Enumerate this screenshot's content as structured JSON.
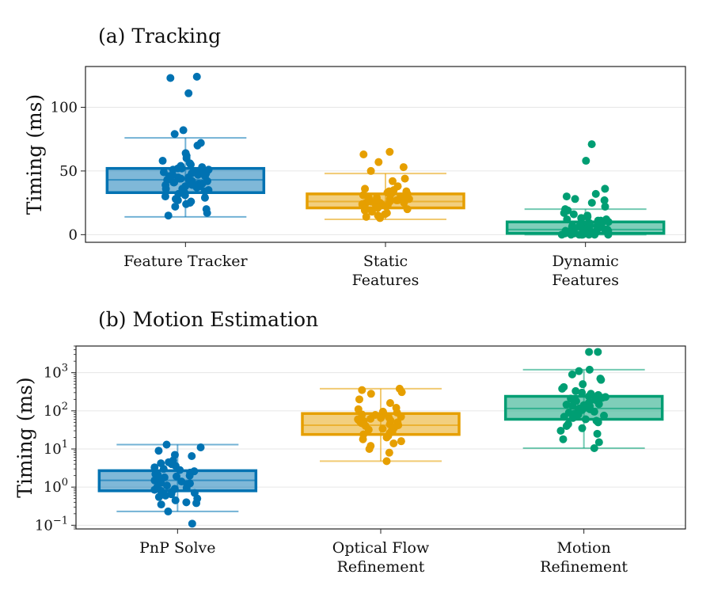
{
  "colors": {
    "blue": "#0072b2",
    "orange": "#e69f00",
    "green": "#009e73"
  },
  "chart_data": [
    {
      "type": "box",
      "title": "(a) Tracking",
      "ylabel": "Timing (ms)",
      "yscale": "linear",
      "ylim": [
        -6,
        132
      ],
      "yticks": [
        0,
        50,
        100
      ],
      "ytick_labels": [
        "0",
        "50",
        "100"
      ],
      "categories": [
        {
          "label": [
            "Feature Tracker"
          ],
          "color": "blue",
          "whisker_low": 14,
          "q1": 33,
          "median": 43,
          "q3": 52,
          "whisker_high": 76,
          "points": [
            123,
            124,
            111,
            82,
            79,
            72,
            70,
            64,
            62,
            60,
            58,
            56,
            55,
            54,
            53,
            52,
            52,
            51,
            51,
            50,
            50,
            49,
            49,
            48,
            48,
            47,
            47,
            46,
            46,
            46,
            45,
            45,
            44,
            44,
            43,
            43,
            42,
            42,
            41,
            41,
            40,
            40,
            39,
            39,
            38,
            38,
            37,
            36,
            36,
            35,
            34,
            33,
            32,
            31,
            30,
            29,
            28,
            27,
            26,
            25,
            24,
            22,
            20,
            17,
            15
          ]
        },
        {
          "label": [
            "Static",
            "Features"
          ],
          "color": "orange",
          "whisker_low": 12,
          "q1": 21,
          "median": 26,
          "q3": 32,
          "whisker_high": 48,
          "points": [
            65,
            63,
            57,
            53,
            50,
            44,
            42,
            38,
            36,
            35,
            34,
            34,
            33,
            33,
            32,
            32,
            31,
            31,
            30,
            30,
            29,
            29,
            28,
            28,
            27,
            27,
            27,
            26,
            26,
            26,
            25,
            25,
            25,
            24,
            24,
            24,
            23,
            23,
            22,
            22,
            21,
            21,
            20,
            20,
            19,
            18,
            17,
            16,
            15,
            14,
            13
          ]
        },
        {
          "label": [
            "Dynamic",
            "Features"
          ],
          "color": "green",
          "whisker_low": 0,
          "q1": 1,
          "median": 4,
          "q3": 10,
          "whisker_high": 20,
          "points": [
            71,
            58,
            36,
            32,
            30,
            28,
            27,
            25,
            22,
            20,
            19,
            18,
            17,
            16,
            15,
            14,
            13,
            13,
            12,
            12,
            11,
            11,
            10,
            10,
            9,
            9,
            8,
            8,
            8,
            7,
            7,
            7,
            6,
            6,
            6,
            5,
            5,
            5,
            5,
            4,
            4,
            4,
            3,
            3,
            3,
            3,
            2,
            2,
            2,
            2,
            1,
            1,
            1,
            1,
            1,
            0,
            0,
            0,
            0,
            0,
            0,
            0,
            0
          ]
        }
      ]
    },
    {
      "type": "box",
      "title": "(b) Motion Estimation",
      "ylabel": "Timing (ms)",
      "yscale": "log",
      "ylim": [
        0.08,
        5000
      ],
      "yticks": [
        0.1,
        1,
        10,
        100,
        1000
      ],
      "ytick_labels": [
        [
          "10",
          "−1"
        ],
        [
          "10",
          "0"
        ],
        [
          "10",
          "1"
        ],
        [
          "10",
          "2"
        ],
        [
          "10",
          "3"
        ]
      ],
      "categories": [
        {
          "label": [
            "PnP Solve"
          ],
          "color": "blue",
          "whisker_low": 0.23,
          "q1": 0.8,
          "median": 1.5,
          "q3": 2.7,
          "whisker_high": 13,
          "points": [
            13,
            11,
            9,
            7,
            6.5,
            5,
            4.5,
            4.2,
            4,
            3.6,
            3.3,
            3,
            2.8,
            2.6,
            2.4,
            2.2,
            2.1,
            2,
            1.9,
            1.8,
            1.7,
            1.6,
            1.5,
            1.4,
            1.3,
            1.25,
            1.2,
            1.1,
            1,
            0.95,
            0.9,
            0.85,
            0.8,
            0.75,
            0.7,
            0.65,
            0.6,
            0.55,
            0.5,
            0.45,
            0.4,
            0.38,
            0.35,
            0.23,
            0.11
          ]
        },
        {
          "label": [
            "Optical Flow",
            "Refinement"
          ],
          "color": "orange",
          "whisker_low": 4.8,
          "q1": 24,
          "median": 42,
          "q3": 85,
          "whisker_high": 380,
          "points": [
            380,
            350,
            310,
            280,
            200,
            160,
            120,
            110,
            95,
            90,
            85,
            80,
            78,
            75,
            70,
            68,
            65,
            62,
            60,
            58,
            56,
            54,
            52,
            50,
            48,
            46,
            44,
            42,
            40,
            38,
            36,
            34,
            32,
            30,
            28,
            26,
            24,
            22,
            20,
            18,
            16,
            14,
            12,
            10,
            8,
            4.8
          ]
        },
        {
          "label": [
            "Motion",
            "Refinement"
          ],
          "color": "green",
          "whisker_low": 10.5,
          "q1": 60,
          "median": 115,
          "q3": 240,
          "whisker_high": 1200,
          "points": [
            3500,
            3500,
            1200,
            1100,
            900,
            700,
            650,
            500,
            420,
            380,
            330,
            300,
            280,
            260,
            240,
            230,
            220,
            210,
            200,
            190,
            180,
            170,
            160,
            150,
            145,
            140,
            135,
            130,
            125,
            120,
            115,
            110,
            105,
            100,
            95,
            90,
            85,
            80,
            75,
            70,
            65,
            60,
            55,
            50,
            45,
            40,
            35,
            30,
            25,
            18,
            15,
            10.5
          ]
        }
      ]
    }
  ]
}
